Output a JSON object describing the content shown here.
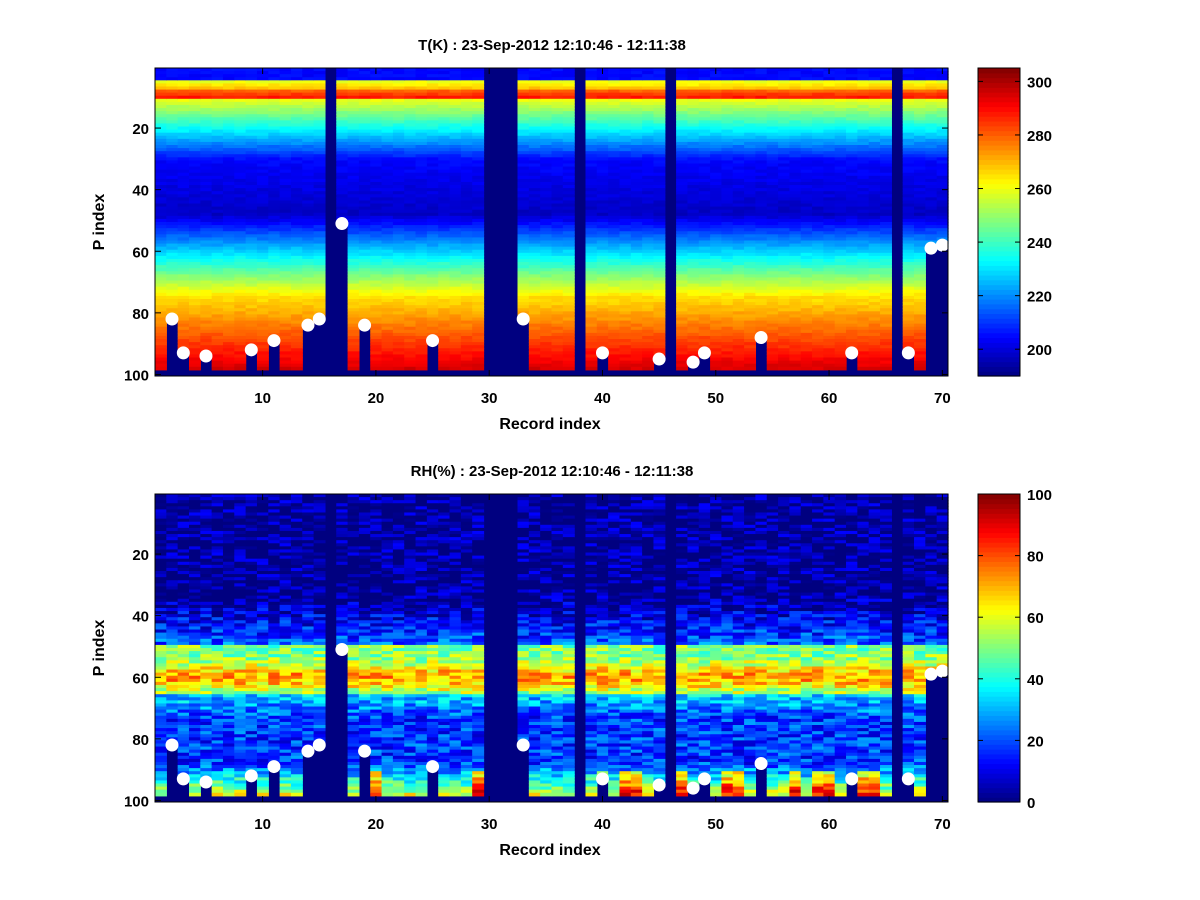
{
  "chart_data": [
    {
      "type": "heatmap",
      "title": "T(K) : 23-Sep-2012 12:10:46 - 12:11:38",
      "xlabel": "Record index",
      "ylabel": "P index",
      "xlim": [
        1,
        70
      ],
      "ylim": [
        1,
        100
      ],
      "y_reversed": true,
      "xticks": [
        10,
        20,
        30,
        40,
        50,
        60,
        70
      ],
      "yticks": [
        20,
        40,
        60,
        80,
        100
      ],
      "colorbar": {
        "min": 190,
        "max": 305,
        "ticks": [
          200,
          220,
          240,
          260,
          280,
          300
        ],
        "colormap": "jet"
      },
      "profile_fn": "temperature",
      "cell_min": 185,
      "missing_records": [
        16,
        30,
        31,
        32,
        38,
        46,
        66
      ],
      "surface_markers": {
        "x": [
          2,
          3,
          5,
          9,
          11,
          14,
          15,
          17,
          19,
          25,
          33,
          40,
          45,
          48,
          49,
          54,
          62,
          67,
          69,
          70
        ],
        "y": [
          82,
          93,
          94,
          92,
          89,
          84,
          82,
          51,
          84,
          89,
          82,
          93,
          95,
          96,
          93,
          88,
          93,
          93,
          59,
          58
        ]
      }
    },
    {
      "type": "heatmap",
      "title": "RH(%) : 23-Sep-2012 12:10:46 - 12:11:38",
      "xlabel": "Record index",
      "ylabel": "P index",
      "xlim": [
        1,
        70
      ],
      "ylim": [
        1,
        100
      ],
      "y_reversed": true,
      "xticks": [
        10,
        20,
        30,
        40,
        50,
        60,
        70
      ],
      "yticks": [
        20,
        40,
        60,
        80,
        100
      ],
      "colorbar": {
        "min": 0,
        "max": 100,
        "ticks": [
          0,
          20,
          40,
          60,
          80,
          100
        ],
        "colormap": "jet"
      },
      "profile_fn": "humidity",
      "cell_min": 0,
      "missing_records": [
        16,
        30,
        31,
        32,
        38,
        46,
        66
      ],
      "surface_markers": {
        "x": [
          2,
          3,
          5,
          9,
          11,
          14,
          15,
          17,
          19,
          25,
          33,
          40,
          45,
          48,
          49,
          54,
          62,
          67,
          69,
          70
        ],
        "y": [
          82,
          93,
          94,
          92,
          89,
          84,
          82,
          51,
          84,
          89,
          82,
          93,
          95,
          96,
          93,
          88,
          93,
          93,
          59,
          58
        ]
      }
    }
  ]
}
